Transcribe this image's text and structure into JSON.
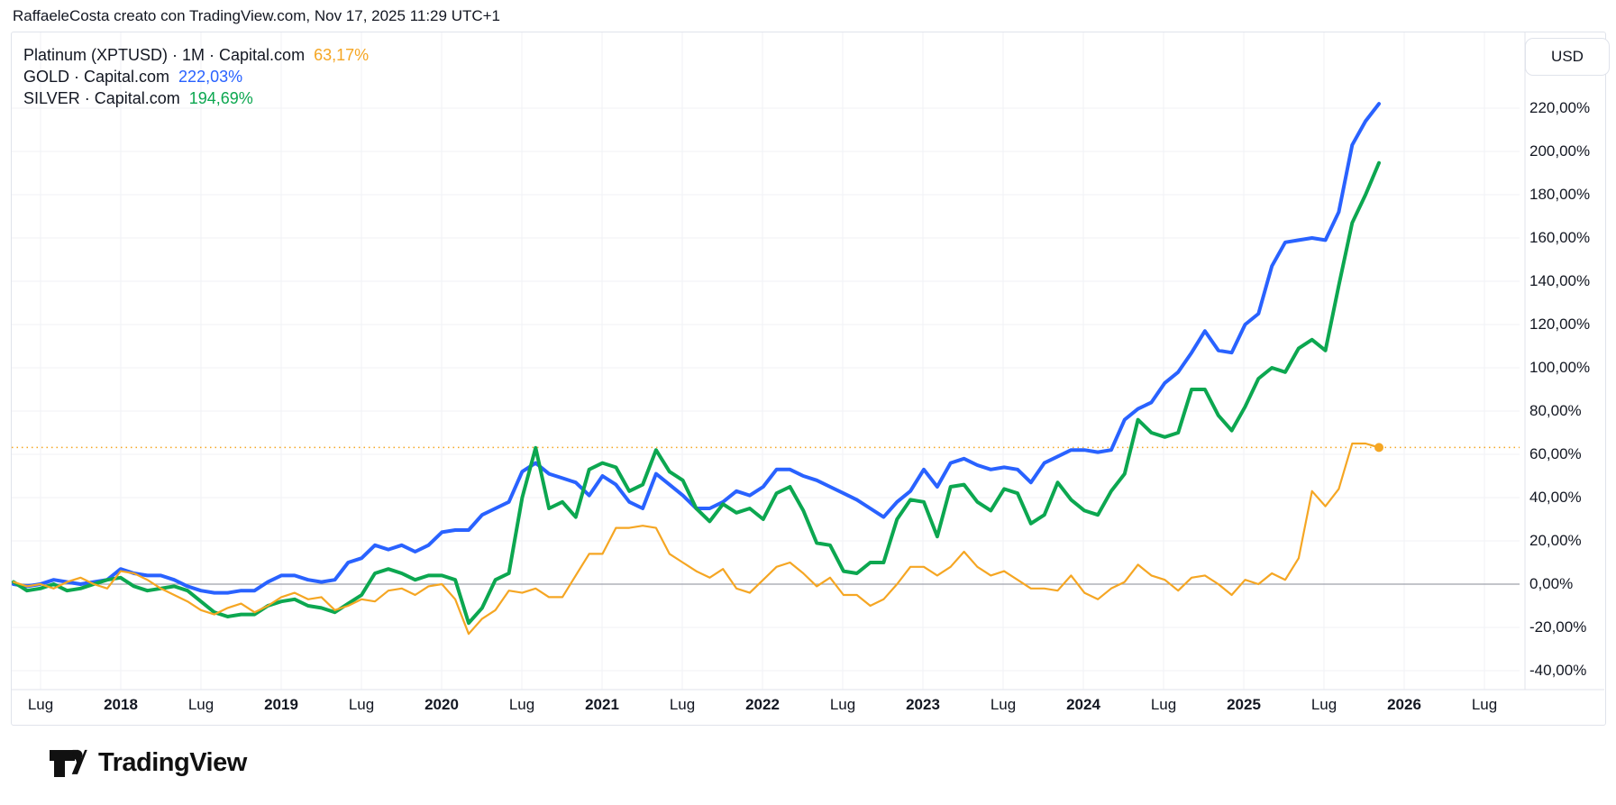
{
  "attribution": "RaffaeleCosta creato con TradingView.com, Nov 17, 2025 11:29 UTC+1",
  "legend": [
    {
      "label": "Platinum (XPTUSD) · 1M · Capital.com",
      "value": "63,17%",
      "color": "#F5A623"
    },
    {
      "label": "GOLD · Capital.com",
      "value": "222,03%",
      "color": "#2962FF"
    },
    {
      "label": "SILVER · Capital.com",
      "value": "194,69%",
      "color": "#0CA750"
    }
  ],
  "y_axis": {
    "currency_button": "USD",
    "labels": [
      "220,00%",
      "200,00%",
      "180,00%",
      "160,00%",
      "140,00%",
      "120,00%",
      "100,00%",
      "80,00%",
      "60,00%",
      "40,00%",
      "20,00%",
      "0,00%",
      "-20,00%",
      "-40,00%"
    ],
    "values": [
      220,
      200,
      180,
      160,
      140,
      120,
      100,
      80,
      60,
      40,
      20,
      0,
      -20,
      -40
    ]
  },
  "x_axis": {
    "labels": [
      "Lug",
      "2018",
      "Lug",
      "2019",
      "Lug",
      "2020",
      "Lug",
      "2021",
      "Lug",
      "2022",
      "Lug",
      "2023",
      "Lug",
      "2024",
      "Lug",
      "2025",
      "Lug",
      "2026",
      "Lug"
    ]
  },
  "footer": {
    "brand": "TradingView"
  },
  "colors": {
    "platinum": "#F5A623",
    "gold": "#2962FF",
    "silver": "#0CA750",
    "grid": "#f0f2f6",
    "zero_line": "#9fa2ab",
    "frame": "#e0e3eb",
    "text": "#131722"
  },
  "chart_data": {
    "type": "line",
    "title": "Platinum vs Gold vs Silver — percent change comparison",
    "interval": "1M",
    "x_start": "2017-05",
    "x_end": "2025-11",
    "x_interval_months": 1,
    "ylim": [
      -45,
      230
    ],
    "grid": true,
    "unit": "%",
    "last_value_line": {
      "series": "Platinum (XPTUSD)",
      "value": 63.17,
      "style": "dotted"
    },
    "series": [
      {
        "name": "Platinum (XPTUSD)",
        "provider": "Capital.com",
        "last_value": 63.17,
        "color": "#F5A623",
        "values": [
          1,
          -1,
          0,
          -2,
          1,
          3,
          0,
          -2,
          6,
          5,
          2,
          -2,
          -5,
          -8,
          -12,
          -14,
          -11,
          -9,
          -13,
          -10,
          -6,
          -4,
          -7,
          -6,
          -12,
          -10,
          -7,
          -8,
          -3,
          -2,
          -5,
          -1,
          0,
          -7,
          -23,
          -16,
          -12,
          -3,
          -4,
          -2,
          -6,
          -6,
          4,
          14,
          14,
          26,
          26,
          27,
          26,
          14,
          10,
          6,
          3,
          7,
          -2,
          -4,
          2,
          8,
          10,
          5,
          -1,
          3,
          -5,
          -5,
          -10,
          -7,
          0,
          8,
          8,
          4,
          8,
          15,
          8,
          4,
          6,
          2,
          -2,
          -2,
          -3,
          4,
          -4,
          -7,
          -2,
          1,
          9,
          4,
          2,
          -3,
          3,
          4,
          0,
          -5,
          2,
          0,
          5,
          2,
          12,
          43,
          36,
          44,
          65,
          65,
          63.17
        ]
      },
      {
        "name": "GOLD",
        "provider": "Capital.com",
        "last_value": 222.03,
        "color": "#2962FF",
        "values": [
          0,
          -1,
          0,
          2,
          1,
          0,
          1,
          2,
          7,
          5,
          4,
          4,
          2,
          -1,
          -3,
          -4,
          -4,
          -3,
          -3,
          1,
          4,
          4,
          2,
          1,
          2,
          10,
          12,
          18,
          16,
          18,
          15,
          18,
          24,
          25,
          25,
          32,
          35,
          38,
          52,
          56,
          51,
          49,
          47,
          41,
          50,
          46,
          38,
          35,
          51,
          46,
          41,
          35,
          35,
          38,
          43,
          41,
          45,
          53,
          53,
          50,
          48,
          45,
          42,
          39,
          35,
          31,
          38,
          43,
          53,
          45,
          56,
          58,
          55,
          53,
          54,
          53,
          47,
          56,
          59,
          62,
          62,
          61,
          62,
          76,
          81,
          84,
          93,
          98,
          107,
          117,
          108,
          107,
          120,
          125,
          147,
          158,
          159,
          160,
          159,
          172,
          203,
          214,
          222.03
        ]
      },
      {
        "name": "SILVER",
        "provider": "Capital.com",
        "last_value": 194.69,
        "color": "#0CA750",
        "values": [
          1,
          -3,
          -2,
          0,
          -3,
          -2,
          0,
          2,
          3,
          -1,
          -3,
          -2,
          -1,
          -3,
          -8,
          -13,
          -15,
          -14,
          -14,
          -10,
          -8,
          -7,
          -10,
          -11,
          -13,
          -9,
          -5,
          5,
          7,
          5,
          2,
          4,
          4,
          2,
          -18,
          -11,
          2,
          5,
          40,
          63,
          35,
          38,
          31,
          53,
          56,
          54,
          43,
          46,
          62,
          52,
          48,
          35,
          29,
          37,
          33,
          35,
          30,
          42,
          45,
          34,
          19,
          18,
          6,
          5,
          10,
          10,
          30,
          39,
          38,
          22,
          45,
          46,
          38,
          34,
          44,
          42,
          28,
          32,
          47,
          39,
          34,
          32,
          43,
          51,
          76,
          70,
          68,
          70,
          90,
          90,
          78,
          71,
          82,
          95,
          100,
          98,
          109,
          113,
          108,
          138,
          167,
          180,
          194.69
        ]
      }
    ]
  }
}
